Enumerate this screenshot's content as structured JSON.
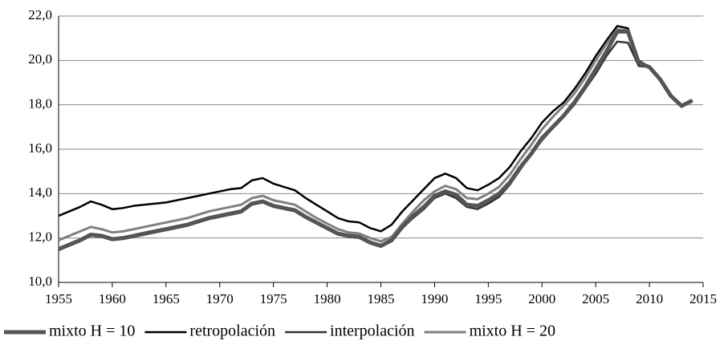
{
  "chart_data": {
    "type": "line",
    "x": [
      1955,
      1956,
      1957,
      1958,
      1959,
      1960,
      1961,
      1962,
      1963,
      1964,
      1965,
      1966,
      1967,
      1968,
      1969,
      1970,
      1971,
      1972,
      1973,
      1974,
      1975,
      1976,
      1977,
      1978,
      1979,
      1980,
      1981,
      1982,
      1983,
      1984,
      1985,
      1986,
      1987,
      1988,
      1989,
      1990,
      1991,
      1992,
      1993,
      1994,
      1995,
      1996,
      1997,
      1998,
      1999,
      2000,
      2001,
      2002,
      2003,
      2004,
      2005,
      2006,
      2007,
      2008,
      2009,
      2010,
      2011,
      2012,
      2013,
      2014
    ],
    "series": [
      {
        "name": "mixto H = 10",
        "color": "#555555",
        "values": [
          11.5,
          11.7,
          11.9,
          12.15,
          12.1,
          11.95,
          12.0,
          12.1,
          12.2,
          12.3,
          12.4,
          12.5,
          12.6,
          12.75,
          12.9,
          13.0,
          13.1,
          13.2,
          13.55,
          13.65,
          13.45,
          13.35,
          13.25,
          12.95,
          12.7,
          12.45,
          12.2,
          12.1,
          12.05,
          11.8,
          11.65,
          11.9,
          12.5,
          13.0,
          13.4,
          13.9,
          14.1,
          13.95,
          13.5,
          13.45,
          13.7,
          14.0,
          14.5,
          15.2,
          15.8,
          16.5,
          17.0,
          17.5,
          18.1,
          18.8,
          19.6,
          20.4,
          21.3,
          21.3,
          19.9,
          19.7,
          19.15,
          18.4,
          17.95,
          18.2
        ]
      },
      {
        "name": "retropolación",
        "color": "#000000",
        "values": [
          13.0,
          13.2,
          13.4,
          13.65,
          13.5,
          13.3,
          13.35,
          13.45,
          13.5,
          13.55,
          13.6,
          13.7,
          13.8,
          13.9,
          14.0,
          14.1,
          14.2,
          14.25,
          14.6,
          14.7,
          14.45,
          14.3,
          14.15,
          13.8,
          13.5,
          13.2,
          12.9,
          12.75,
          12.7,
          12.45,
          12.3,
          12.6,
          13.2,
          13.7,
          14.2,
          14.7,
          14.9,
          14.7,
          14.25,
          14.15,
          14.4,
          14.7,
          15.2,
          15.9,
          16.5,
          17.2,
          17.7,
          18.1,
          18.7,
          19.4,
          20.2,
          20.9,
          21.55,
          21.45,
          20.0,
          19.7,
          19.15,
          18.4,
          17.95,
          18.2
        ]
      },
      {
        "name": "interpolación",
        "color": "#333333",
        "values": [
          11.45,
          11.65,
          11.85,
          12.1,
          12.05,
          11.9,
          11.95,
          12.05,
          12.15,
          12.25,
          12.35,
          12.45,
          12.55,
          12.7,
          12.85,
          12.95,
          13.05,
          13.15,
          13.5,
          13.6,
          13.4,
          13.3,
          13.2,
          12.9,
          12.65,
          12.4,
          12.15,
          12.05,
          12.0,
          11.75,
          11.6,
          11.85,
          12.45,
          12.9,
          13.3,
          13.8,
          14.0,
          13.8,
          13.4,
          13.3,
          13.55,
          13.85,
          14.4,
          15.1,
          15.8,
          16.4,
          16.95,
          17.45,
          18.0,
          18.7,
          19.4,
          20.2,
          20.85,
          20.8,
          19.75,
          19.7,
          19.15,
          18.4,
          17.95,
          18.2
        ]
      },
      {
        "name": "mixto H = 20",
        "color": "#808080",
        "values": [
          11.9,
          12.1,
          12.3,
          12.5,
          12.4,
          12.25,
          12.3,
          12.4,
          12.5,
          12.6,
          12.7,
          12.8,
          12.9,
          13.05,
          13.2,
          13.3,
          13.4,
          13.5,
          13.8,
          13.9,
          13.7,
          13.6,
          13.5,
          13.2,
          12.9,
          12.65,
          12.4,
          12.25,
          12.2,
          12.0,
          11.85,
          12.05,
          12.65,
          13.2,
          13.7,
          14.1,
          14.35,
          14.2,
          13.8,
          13.75,
          14.0,
          14.3,
          14.85,
          15.55,
          16.2,
          16.9,
          17.45,
          17.95,
          18.5,
          19.2,
          20.0,
          20.75,
          21.4,
          21.35,
          19.95,
          19.7,
          19.15,
          18.4,
          17.95,
          18.2
        ]
      }
    ],
    "xlim": [
      1955,
      2015
    ],
    "xticks": [
      1955,
      1960,
      1965,
      1970,
      1975,
      1980,
      1985,
      1990,
      1995,
      2000,
      2005,
      2010,
      2015
    ],
    "ylim": [
      10,
      22
    ],
    "yticks": [
      {
        "value": 10,
        "label": "10,0"
      },
      {
        "value": 12,
        "label": "12,0"
      },
      {
        "value": 14,
        "label": "14,0"
      },
      {
        "value": 16,
        "label": "16,0"
      },
      {
        "value": 18,
        "label": "18,0"
      },
      {
        "value": 20,
        "label": "20,0"
      },
      {
        "value": 22,
        "label": "22,0"
      }
    ],
    "grid": true,
    "legend": "bottom"
  }
}
